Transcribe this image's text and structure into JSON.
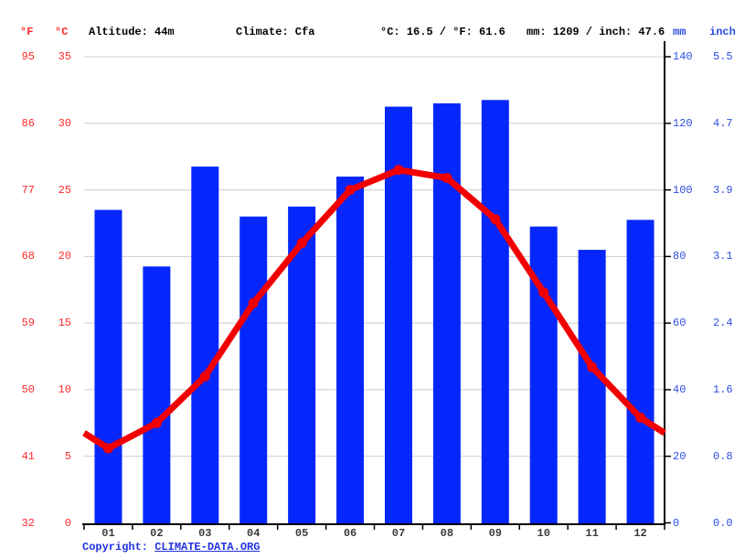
{
  "header": {
    "fahrenheit_label": "°F",
    "celsius_label": "°C",
    "altitude": "Altitude: 44m",
    "climate": "Climate: Cfa",
    "temperature_summary": "°C: 16.5 / °F: 61.6",
    "precipitation_summary": "mm: 1209 / inch: 47.6",
    "mm_label": "mm",
    "inch_label": "inch"
  },
  "axes": {
    "left_fahrenheit": [
      "95",
      "86",
      "77",
      "68",
      "59",
      "50",
      "41",
      "32"
    ],
    "left_celsius": [
      "35",
      "30",
      "25",
      "20",
      "15",
      "10",
      "5",
      "0"
    ],
    "right_mm": [
      "140",
      "120",
      "100",
      "80",
      "60",
      "40",
      "20",
      "0"
    ],
    "right_inch": [
      "5.5",
      "4.7",
      "3.9",
      "3.1",
      "2.4",
      "1.6",
      "0.8",
      "0.0"
    ]
  },
  "chart_data": {
    "type": "bar",
    "subtype": "bar+line climate chart",
    "categories": [
      "01",
      "02",
      "03",
      "04",
      "05",
      "06",
      "07",
      "08",
      "09",
      "10",
      "11",
      "12"
    ],
    "series": [
      {
        "name": "Precipitation",
        "type": "bar",
        "unit": "mm",
        "axis": "right",
        "values": [
          94,
          77,
          107,
          92,
          95,
          104,
          125,
          126,
          127,
          89,
          82,
          91
        ]
      },
      {
        "name": "Temperature",
        "type": "line",
        "unit": "°C",
        "axis": "left",
        "values": [
          5.6,
          7.5,
          11.0,
          16.5,
          21.0,
          25.0,
          26.5,
          25.9,
          22.8,
          17.3,
          11.7,
          7.9
        ]
      }
    ],
    "title": "",
    "xlabel": "",
    "ylabel_left": "°C / °F",
    "ylabel_right": "mm / inch",
    "y_left_celsius": {
      "min": 0,
      "max": 35,
      "ticks": [
        0,
        5,
        10,
        15,
        20,
        25,
        30,
        35
      ]
    },
    "y_right_mm": {
      "min": 0,
      "max": 140,
      "ticks": [
        0,
        20,
        40,
        60,
        80,
        100,
        120,
        140
      ]
    },
    "grid": true,
    "legend_position": "none"
  },
  "footer": {
    "copyright_prefix": "Copyright: ",
    "copyright_link": "CLIMATE-DATA.ORG"
  },
  "colors": {
    "bar_blue": "#0527fb",
    "line_red": "#f20000",
    "marker_red": "#f20000",
    "axis_red_text": "#ff2a2a",
    "axis_blue_text": "#2d4fe0",
    "copyright_blue": "#2231e2",
    "month_text": "#3a3a3a",
    "header_text": "#000000",
    "grid_gray": "#cccccc",
    "axis_black": "#000000"
  }
}
